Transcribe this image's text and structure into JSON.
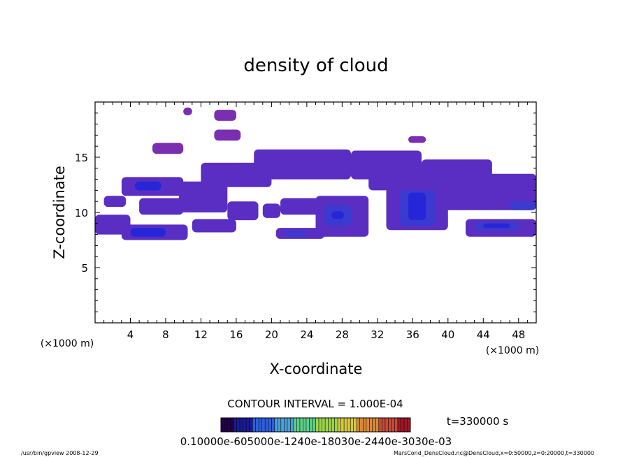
{
  "chart_data": {
    "type": "heatmap",
    "title": "density of cloud",
    "xlabel": "X-coordinate",
    "ylabel": "Z-coordinate",
    "x_unit": "(×1000 m)",
    "y_unit": "(×1000 m)",
    "xlim": [
      0,
      50
    ],
    "ylim": [
      0,
      20
    ],
    "xticks": [
      4,
      8,
      12,
      16,
      20,
      24,
      28,
      32,
      36,
      40,
      44,
      48
    ],
    "yticks": [
      5,
      10,
      15
    ],
    "grid": false,
    "contour_interval_text": "CONTOUR INTERVAL = 1.000E-04",
    "colorbar": {
      "min": 0.0001,
      "max": 0.0007,
      "label_text": "0.10000e-605000e-1240e-18030e-2440e-3030e-03",
      "colors": [
        "#22004a",
        "#1a1a9a",
        "#2f5fd8",
        "#4aa0d8",
        "#5ecf8a",
        "#9bd64a",
        "#d6c840",
        "#d88a3a",
        "#c84a3a",
        "#a01828"
      ]
    },
    "time_label": "t=330000 s",
    "cloud_regions": [
      {
        "x": [
          0,
          4
        ],
        "z": [
          8,
          9.8
        ],
        "level": 1
      },
      {
        "x": [
          1,
          3.5
        ],
        "z": [
          10.5,
          11.5
        ],
        "level": 1
      },
      {
        "x": [
          3,
          10.5
        ],
        "z": [
          7.5,
          8.9
        ],
        "level": 1
      },
      {
        "x": [
          4,
          8
        ],
        "z": [
          7.8,
          8.6
        ],
        "level": 3
      },
      {
        "x": [
          3,
          10
        ],
        "z": [
          11.5,
          13.2
        ],
        "level": 1
      },
      {
        "x": [
          4.5,
          7.5
        ],
        "z": [
          12,
          12.8
        ],
        "level": 3
      },
      {
        "x": [
          5,
          10
        ],
        "z": [
          9.8,
          11.3
        ],
        "level": 1
      },
      {
        "x": [
          6.5,
          10
        ],
        "z": [
          15.3,
          16.3
        ],
        "level": 0
      },
      {
        "x": [
          9.5,
          15
        ],
        "z": [
          10,
          12.8
        ],
        "level": 1
      },
      {
        "x": [
          10,
          11
        ],
        "z": [
          18.8,
          19.5
        ],
        "level": 0
      },
      {
        "x": [
          11,
          16
        ],
        "z": [
          8.2,
          9.4
        ],
        "level": 1
      },
      {
        "x": [
          12,
          20
        ],
        "z": [
          12.3,
          14.5
        ],
        "level": 1
      },
      {
        "x": [
          13.5,
          16
        ],
        "z": [
          18.3,
          19.3
        ],
        "level": 0
      },
      {
        "x": [
          13.5,
          16.5
        ],
        "z": [
          16.5,
          17.5
        ],
        "level": 0
      },
      {
        "x": [
          15,
          18.5
        ],
        "z": [
          9.3,
          11
        ],
        "level": 1
      },
      {
        "x": [
          18,
          29
        ],
        "z": [
          13,
          15.7
        ],
        "level": 1
      },
      {
        "x": [
          19,
          21
        ],
        "z": [
          9.5,
          10.8
        ],
        "level": 1
      },
      {
        "x": [
          21,
          26
        ],
        "z": [
          9.8,
          11.3
        ],
        "level": 1
      },
      {
        "x": [
          20.5,
          26
        ],
        "z": [
          7.6,
          8.6
        ],
        "level": 1
      },
      {
        "x": [
          21.5,
          24
        ],
        "z": [
          7.8,
          8.3
        ],
        "level": 2
      },
      {
        "x": [
          25,
          31
        ],
        "z": [
          7.8,
          11.5
        ],
        "level": 1
      },
      {
        "x": [
          26,
          29
        ],
        "z": [
          8.8,
          10.6
        ],
        "level": 2
      },
      {
        "x": [
          26.8,
          28.2
        ],
        "z": [
          9.4,
          10.1
        ],
        "level": 3
      },
      {
        "x": [
          29,
          37
        ],
        "z": [
          13,
          15.6
        ],
        "level": 1
      },
      {
        "x": [
          31,
          40
        ],
        "z": [
          12,
          13.5
        ],
        "level": 1
      },
      {
        "x": [
          33,
          40
        ],
        "z": [
          8.4,
          12.3
        ],
        "level": 1
      },
      {
        "x": [
          34.5,
          38.5
        ],
        "z": [
          8.8,
          12
        ],
        "level": 2
      },
      {
        "x": [
          35.5,
          37.5
        ],
        "z": [
          9.3,
          11.8
        ],
        "level": 3
      },
      {
        "x": [
          35.5,
          37.5
        ],
        "z": [
          16.3,
          16.9
        ],
        "level": 0
      },
      {
        "x": [
          37,
          45
        ],
        "z": [
          13,
          14.8
        ],
        "level": 1
      },
      {
        "x": [
          39,
          50
        ],
        "z": [
          10.2,
          13.5
        ],
        "level": 1
      },
      {
        "x": [
          42,
          50
        ],
        "z": [
          7.8,
          9.4
        ],
        "level": 1
      },
      {
        "x": [
          43,
          48
        ],
        "z": [
          8.4,
          9.1
        ],
        "level": 2
      },
      {
        "x": [
          44,
          47
        ],
        "z": [
          8.6,
          9
        ],
        "level": 3
      },
      {
        "x": [
          47,
          50
        ],
        "z": [
          10.2,
          11
        ],
        "level": 2
      }
    ]
  },
  "footer": {
    "left": "/usr/bin/gpview   2008-12-29",
    "right": "MarsCond_DensCloud.nc@DensCloud,x=0:50000,z=0:20000,t=330000"
  }
}
